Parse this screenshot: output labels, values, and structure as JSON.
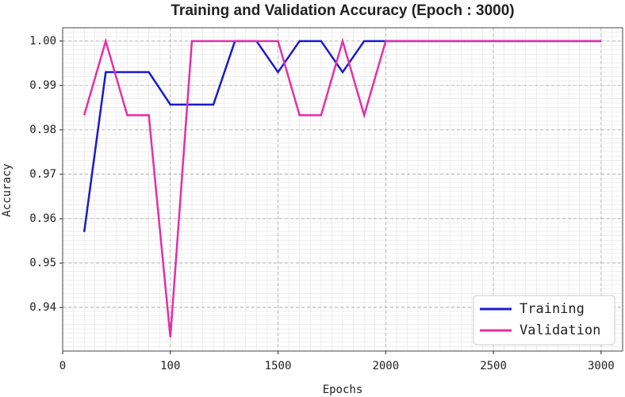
{
  "chart_data": {
    "type": "line",
    "title": "Training and Validation Accuracy (Epoch : 3000)",
    "x_label": "Epochs",
    "y_label": "Accuracy",
    "x": [
      1,
      2,
      3,
      4,
      5,
      6,
      7,
      8,
      9,
      10,
      11,
      12,
      13,
      14,
      15,
      16,
      17,
      18,
      19,
      20,
      21,
      22,
      23,
      24,
      25
    ],
    "series": [
      {
        "name": "Training",
        "color": "#1a1acc",
        "values": [
          0.957,
          0.993,
          0.993,
          0.993,
          0.9857,
          0.9857,
          0.9857,
          1.0,
          1.0,
          0.993,
          1.0,
          1.0,
          0.993,
          1.0,
          1.0,
          1.0,
          1.0,
          1.0,
          1.0,
          1.0,
          1.0,
          1.0,
          1.0,
          1.0,
          1.0
        ]
      },
      {
        "name": "Validation",
        "color": "#e62ea8",
        "values": [
          0.9833,
          1.0,
          0.9833,
          0.9833,
          0.9333,
          1.0,
          1.0,
          1.0,
          1.0,
          1.0,
          0.9833,
          0.9833,
          1.0,
          0.9833,
          1.0,
          1.0,
          1.0,
          1.0,
          1.0,
          1.0,
          1.0,
          1.0,
          1.0,
          1.0,
          1.0
        ]
      }
    ],
    "xlim": [
      0,
      26
    ],
    "xticks": [
      0,
      {
        "value": 5,
        "label": "100"
      },
      {
        "value": 10,
        "label": "1500"
      },
      {
        "value": 15,
        "label": "2000"
      },
      {
        "value": 20,
        "label": "2500"
      },
      {
        "value": 25,
        "label": "3000"
      }
    ],
    "ylim": [
      0.9302,
      1.003
    ],
    "yticks": [
      {
        "value": 0.94,
        "label": "0.94"
      },
      {
        "value": 0.95,
        "label": "0.95"
      },
      {
        "value": 0.96,
        "label": "0.96"
      },
      {
        "value": 0.97,
        "label": "0.97"
      },
      {
        "value": 0.98,
        "label": "0.98"
      },
      {
        "value": 0.99,
        "label": "0.99"
      },
      {
        "value": 1.0,
        "label": "1.00"
      }
    ],
    "grid": true,
    "legend": "lower-right"
  }
}
